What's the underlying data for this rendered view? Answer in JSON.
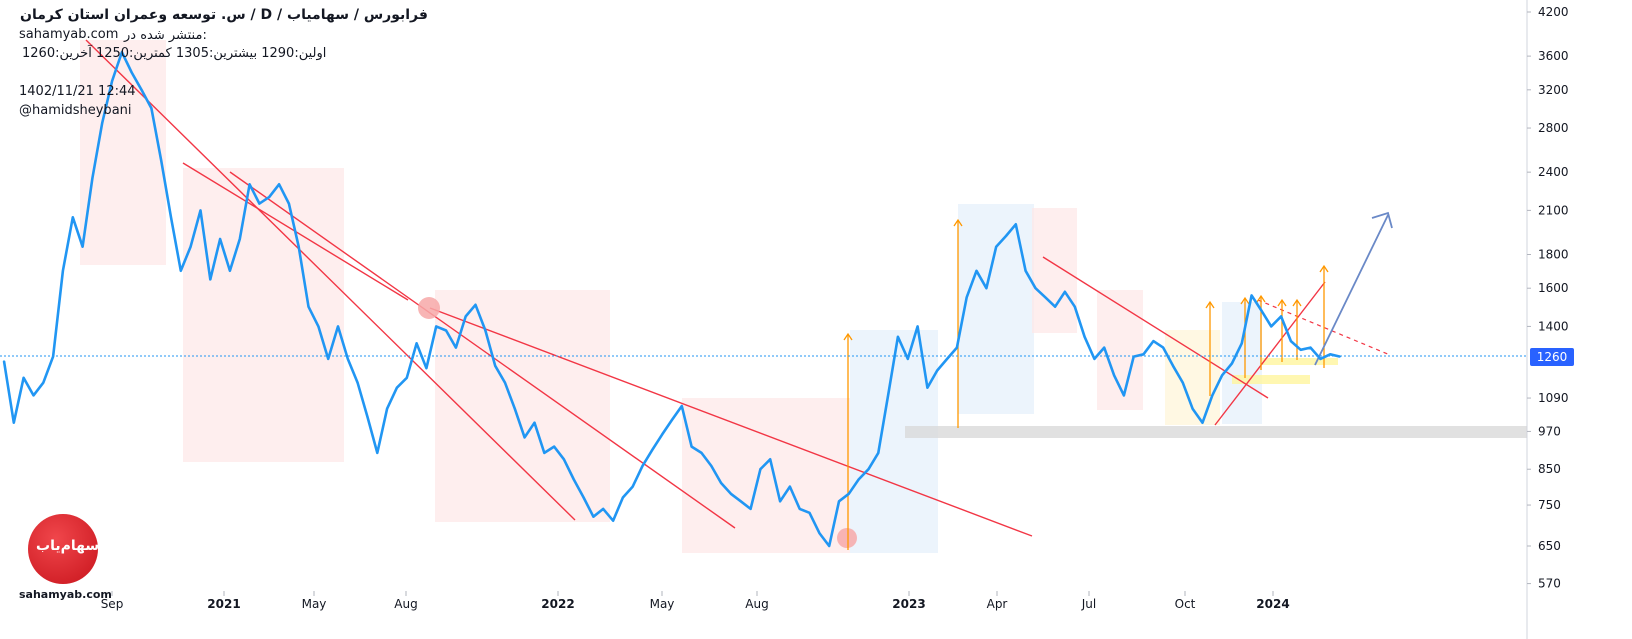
{
  "header": {
    "title": "س. توسعه وعمران استان کرمان /  D  /  فرابورس / سهامیاب",
    "published_on": "منتشر شده در:",
    "site": "sahamyab.com",
    "stats": "اولین:1290  بیشترین:1305  کمترین:1250  آخرین:1260",
    "datetime": "1402/11/21 12:44",
    "author": "@hamidsheybani"
  },
  "brand": {
    "logo_text": "سهام‌یاب",
    "site_label": "sahamyab.com"
  },
  "colors": {
    "price_line": "#2196f3",
    "trend_line": "#f23645",
    "target_arrow": "#ff9800",
    "projection_arrow": "#6a89c7",
    "last_price_badge": "#2962ff"
  },
  "chart_data": {
    "type": "line",
    "y_scale": "log",
    "ylim": [
      570,
      4300
    ],
    "y_ticks": [
      4200,
      3600,
      3200,
      2800,
      2400,
      2100,
      1800,
      1600,
      1400,
      1260,
      1090,
      970,
      850,
      750,
      650,
      570
    ],
    "x_ticks": [
      {
        "label": "Sep",
        "bold": false
      },
      {
        "label": "2021",
        "bold": true
      },
      {
        "label": "May",
        "bold": false
      },
      {
        "label": "Aug",
        "bold": false
      },
      {
        "label": "2022",
        "bold": true
      },
      {
        "label": "May",
        "bold": false
      },
      {
        "label": "Aug",
        "bold": false
      },
      {
        "label": "2023",
        "bold": true
      },
      {
        "label": "Apr",
        "bold": false
      },
      {
        "label": "Jul",
        "bold": false
      },
      {
        "label": "Oct",
        "bold": false
      },
      {
        "label": "2024",
        "bold": true
      }
    ],
    "last_price": 1260,
    "grid": false,
    "series": [
      {
        "values": [
          1240,
          1000,
          1170,
          1100,
          1150,
          1260,
          1700,
          2050,
          1850,
          2350,
          2850,
          3300,
          3650,
          3400,
          3200,
          3000,
          2500,
          2050,
          1700,
          1850,
          2100,
          1650,
          1900,
          1700,
          1900,
          2300,
          2150,
          2200,
          2300,
          2150,
          1850,
          1500,
          1400,
          1250,
          1400,
          1250,
          1150,
          1020,
          900,
          1050,
          1130,
          1170,
          1320,
          1210,
          1400,
          1380,
          1300,
          1450,
          1510,
          1380,
          1220,
          1150,
          1050,
          950,
          1000,
          900,
          920,
          880,
          820,
          770,
          720,
          740,
          710,
          770,
          800,
          860,
          910,
          960,
          1010,
          1060,
          920,
          900,
          860,
          810,
          780,
          760,
          740,
          850,
          880,
          760,
          800,
          740,
          730,
          680,
          650,
          760,
          780,
          820,
          850,
          900,
          1100,
          1350,
          1250,
          1400,
          1130,
          1200,
          1250,
          1300,
          1550,
          1700,
          1600,
          1850,
          1920,
          2000,
          1700,
          1600,
          1550,
          1500,
          1580,
          1500,
          1350,
          1250,
          1300,
          1180,
          1100,
          1260,
          1270,
          1330,
          1300,
          1220,
          1150,
          1050,
          1000,
          1100,
          1180,
          1230,
          1320,
          1560,
          1480,
          1400,
          1450,
          1330,
          1290,
          1300,
          1250,
          1270,
          1260
        ]
      }
    ]
  }
}
